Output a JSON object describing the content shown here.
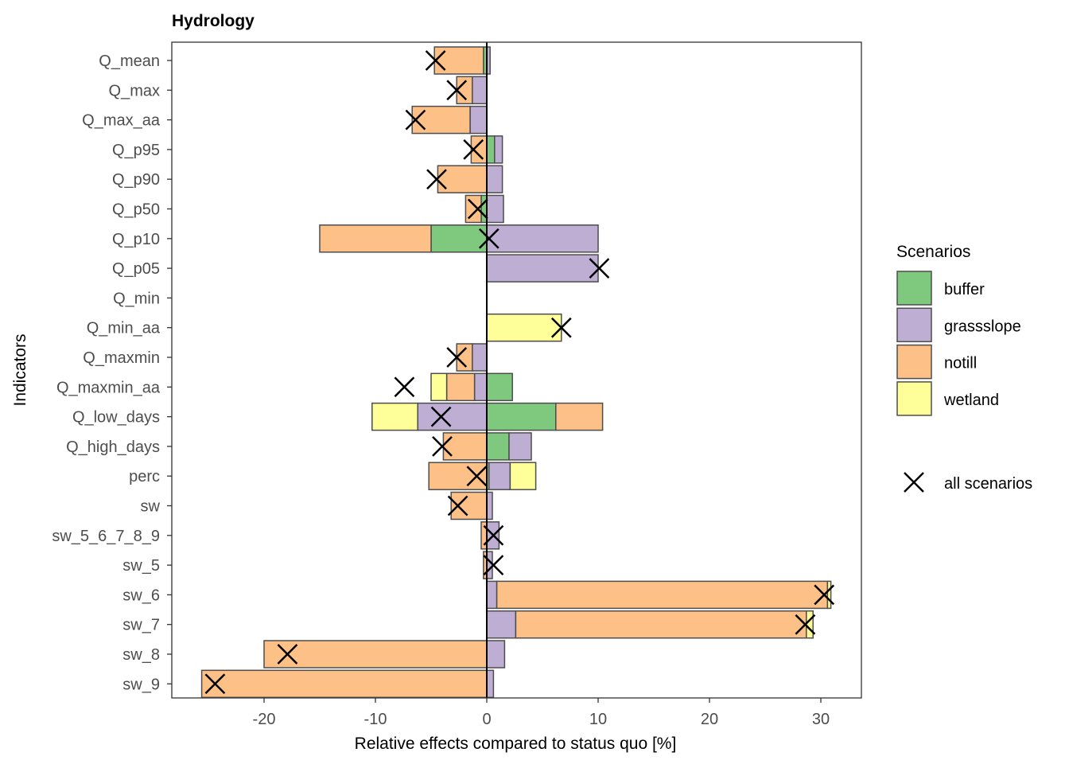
{
  "colors": {
    "buffer": "#7fc97f",
    "grassslope": "#beaed4",
    "notill": "#fdc086",
    "wetland": "#ffff99",
    "bar_stroke": "#4d4d4d",
    "cross": "#000000"
  },
  "chart_data": {
    "type": "bar",
    "orientation": "horizontal",
    "stacked": "diverging",
    "title": "Hydrology",
    "xlabel": "Relative effects compared to status quo [%]",
    "ylabel": "Indicators",
    "xlim": [
      -28.3,
      33.7
    ],
    "xticks": [
      -20,
      -10,
      0,
      10,
      20,
      30
    ],
    "xtick_labels": [
      "-20",
      "-10",
      "0",
      "10",
      "20",
      "30"
    ],
    "grid": false,
    "legend_position": "right",
    "legend_title": "Scenarios",
    "categories": [
      "Q_mean",
      "Q_max",
      "Q_max_aa",
      "Q_p95",
      "Q_p90",
      "Q_p50",
      "Q_p10",
      "Q_p05",
      "Q_min",
      "Q_min_aa",
      "Q_maxmin",
      "Q_maxmin_aa",
      "Q_low_days",
      "Q_high_days",
      "perc",
      "sw",
      "sw_5_6_7_8_9",
      "sw_5",
      "sw_6",
      "sw_7",
      "sw_8",
      "sw_9"
    ],
    "series": [
      {
        "name": "buffer",
        "values": [
          -0.3,
          0,
          0,
          0.7,
          0,
          -0.5,
          -5.0,
          0,
          0,
          0,
          0,
          2.3,
          6.2,
          2.0,
          0.2,
          0,
          0,
          0,
          0,
          0,
          0,
          0
        ]
      },
      {
        "name": "grassslope",
        "values": [
          0.3,
          -1.3,
          -1.5,
          0.7,
          1.4,
          1.5,
          10.0,
          10.0,
          0,
          0,
          -1.3,
          -1.1,
          -6.2,
          2.0,
          1.9,
          0.5,
          1.1,
          0.5,
          0.9,
          2.6,
          1.6,
          0.6
        ]
      },
      {
        "name": "notill",
        "values": [
          -4.4,
          -1.4,
          -5.2,
          -1.4,
          -4.4,
          -1.4,
          -10.0,
          0,
          0,
          0,
          -1.4,
          -2.5,
          4.2,
          -3.9,
          -5.2,
          -3.2,
          -0.5,
          -0.3,
          29.7,
          26.1,
          -20.0,
          -25.6
        ]
      },
      {
        "name": "wetland",
        "values": [
          0,
          0,
          0,
          0,
          0,
          0,
          0,
          0,
          0,
          6.7,
          0,
          -1.4,
          -4.1,
          0,
          2.3,
          0,
          0,
          0,
          0.3,
          0.6,
          0,
          0
        ]
      }
    ],
    "all_scenarios": {
      "name": "all scenarios",
      "values": [
        -4.6,
        -2.7,
        -6.4,
        -1.2,
        -4.5,
        -0.8,
        0.2,
        10.1,
        null,
        6.7,
        -2.7,
        -7.4,
        -4.1,
        -4.0,
        -0.9,
        -2.6,
        0.6,
        0.6,
        30.3,
        28.6,
        -17.9,
        -24.4
      ]
    },
    "legend_entries": [
      "buffer",
      "grassslope",
      "notill",
      "wetland"
    ],
    "marker_legend_label": "all scenarios"
  }
}
